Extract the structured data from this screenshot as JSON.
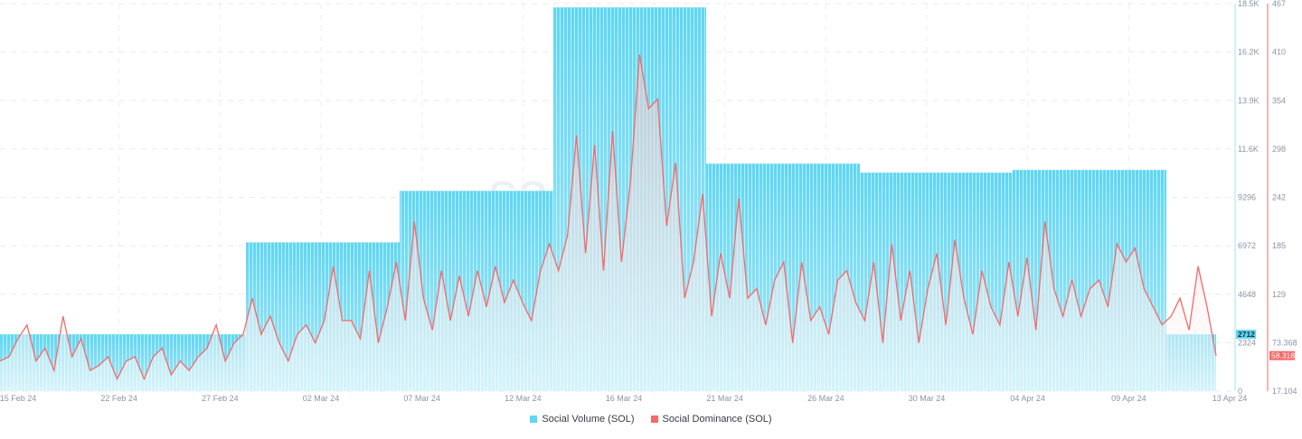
{
  "chart_data": {
    "type": "bar+line",
    "watermark": "santiment",
    "x_ticks": [
      "15 Feb 24",
      "22 Feb 24",
      "27 Feb 24",
      "02 Mar 24",
      "07 Mar 24",
      "12 Mar 24",
      "16 Mar 24",
      "21 Mar 24",
      "26 Mar 24",
      "30 Mar 24",
      "04 Apr 24",
      "09 Apr 24",
      "13 Apr 24"
    ],
    "volume_axis": {
      "ticks": [
        "0",
        "2324",
        "4648",
        "6972",
        "9296",
        "11.6K",
        "13.9K",
        "16.2K",
        "18.5K"
      ],
      "range": [
        0,
        18500
      ],
      "current_value_label": "2712",
      "color": "#5fd6f2"
    },
    "dominance_axis": {
      "ticks": [
        "17.104",
        "73.368",
        "129",
        "185",
        "242",
        "298",
        "354",
        "410",
        "467"
      ],
      "range": [
        17.104,
        467
      ],
      "current_value_label": "58.318",
      "color": "#f46a6a"
    },
    "series": [
      {
        "name": "Social Volume (SOL)",
        "type": "bar",
        "color": "#5fd6f2",
        "segments": [
          2712,
          7100,
          9560,
          18320,
          10860,
          10430,
          10560,
          2712
        ]
      },
      {
        "name": "Social Dominance (SOL)",
        "type": "line",
        "color": "#f46a6a",
        "values": [
          52,
          57,
          78,
          94,
          52,
          67,
          41,
          104,
          57,
          78,
          41,
          47,
          57,
          31,
          52,
          57,
          31,
          57,
          67,
          36,
          52,
          41,
          57,
          67,
          94,
          52,
          73,
          83,
          125,
          83,
          104,
          73,
          52,
          83,
          94,
          73,
          99,
          162,
          99,
          99,
          78,
          157,
          73,
          115,
          167,
          99,
          214,
          125,
          88,
          157,
          99,
          151,
          104,
          157,
          115,
          162,
          120,
          146,
          120,
          99,
          157,
          188,
          157,
          198,
          314,
          177,
          303,
          157,
          319,
          167,
          261,
          408,
          345,
          356,
          209,
          282,
          125,
          167,
          246,
          104,
          177,
          125,
          241,
          125,
          136,
          94,
          146,
          167,
          73,
          167,
          99,
          115,
          83,
          146,
          157,
          120,
          99,
          167,
          73,
          188,
          99,
          157,
          73,
          136,
          177,
          94,
          193,
          125,
          83,
          157,
          115,
          94,
          167,
          104,
          172,
          88,
          214,
          136,
          104,
          146,
          104,
          136,
          146,
          115,
          188,
          167,
          183,
          136,
          115,
          94,
          104,
          125,
          88,
          162,
          115,
          58
        ]
      }
    ],
    "legend": [
      "Social Volume (SOL)",
      "Social Dominance (SOL)"
    ],
    "legend_placement": "bottom-center",
    "grid": true
  }
}
